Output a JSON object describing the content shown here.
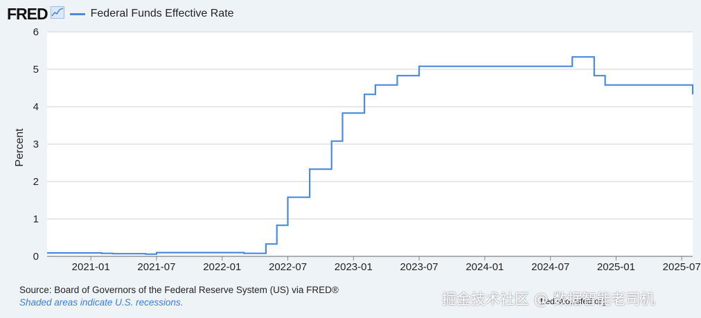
{
  "header": {
    "logo_text": "FRED",
    "logo_icon": "line-chart-icon",
    "legend_label": "Federal Funds Effective Rate"
  },
  "colors": {
    "series": "#4a89dc",
    "grid": "#d0d0d0",
    "background": "#eef3f8",
    "plot_background": "#ffffff"
  },
  "chart_data": {
    "type": "line",
    "title": "",
    "xlabel": "",
    "ylabel": "Percent",
    "ylim": [
      0,
      6
    ],
    "xlim": [
      "2020-09",
      "2025-08"
    ],
    "yticks": [
      "0",
      "1",
      "2",
      "3",
      "4",
      "5",
      "6"
    ],
    "xticks": [
      "2021-01",
      "2021-07",
      "2022-01",
      "2022-07",
      "2023-01",
      "2023-07",
      "2024-01",
      "2024-07",
      "2025-01",
      "2025-07"
    ],
    "grid": true,
    "legend": "top-left",
    "series": [
      {
        "name": "Federal Funds Effective Rate",
        "x": [
          "2020-09",
          "2021-02",
          "2021-03",
          "2021-06",
          "2021-07",
          "2022-03",
          "2022-05",
          "2022-06",
          "2022-07",
          "2022-09",
          "2022-11",
          "2022-12",
          "2023-02",
          "2023-03",
          "2023-05",
          "2023-07",
          "2024-09",
          "2024-11",
          "2024-12",
          "2025-08"
        ],
        "y": [
          0.09,
          0.08,
          0.07,
          0.06,
          0.1,
          0.08,
          0.33,
          0.83,
          1.58,
          2.33,
          3.08,
          3.83,
          4.33,
          4.58,
          4.83,
          5.08,
          5.33,
          4.83,
          4.58,
          4.33
        ]
      }
    ]
  },
  "footer": {
    "source": "Source: Board of Governors of the Federal Reserve System (US) via FRED®",
    "note": "Shaded areas indicate U.S. recessions.",
    "credit": "fred.stlouisfed.org"
  },
  "watermark": "掘金技术社区 @ 数据智能老司机"
}
